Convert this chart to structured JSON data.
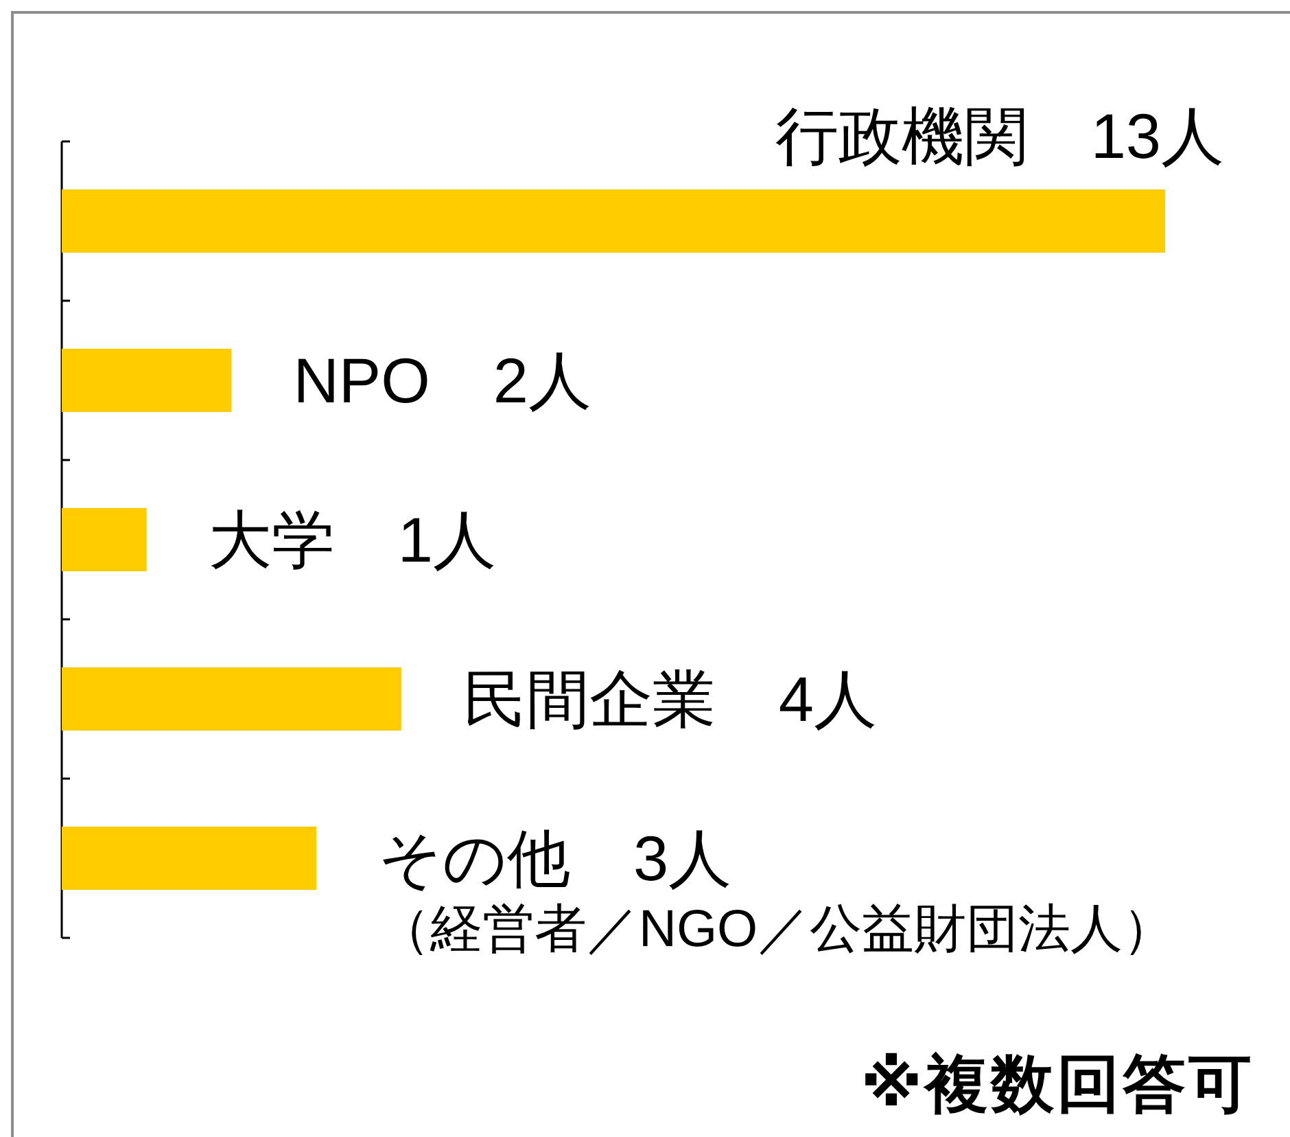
{
  "chart_data": {
    "type": "bar",
    "orientation": "horizontal",
    "categories": [
      null,
      null,
      null,
      null,
      null
    ],
    "values": [
      13,
      2,
      1,
      4,
      3
    ],
    "color": "#ffcc00",
    "value_labels": [
      "行政機関　13人",
      "NPO　2人",
      "大学　1人",
      "民間企業　4人",
      "その他　3人（経営者／NGO／公益財団法人）"
    ],
    "annotations": [
      "※複数回答可"
    ]
  }
}
